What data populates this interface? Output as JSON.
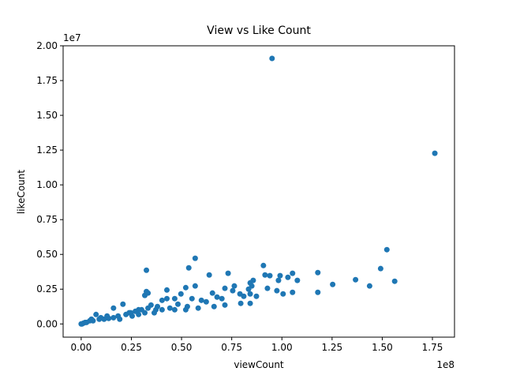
{
  "chart_data": {
    "type": "scatter",
    "title": "View vs Like Count",
    "x_label": "viewCount",
    "y_label": "likeCount",
    "x_offset_label": "1e8",
    "y_offset_label": "1e7",
    "color": "#1f77b4",
    "xlim": [
      -9000000,
      186000000
    ],
    "ylim": [
      -950000,
      20000000
    ],
    "xticks": [
      {
        "value": 0,
        "label": "0.00"
      },
      {
        "value": 25000000,
        "label": "0.25"
      },
      {
        "value": 50000000,
        "label": "0.50"
      },
      {
        "value": 75000000,
        "label": "0.75"
      },
      {
        "value": 100000000,
        "label": "1.00"
      },
      {
        "value": 125000000,
        "label": "1.25"
      },
      {
        "value": 150000000,
        "label": "1.50"
      },
      {
        "value": 175000000,
        "label": "1.75"
      }
    ],
    "yticks": [
      {
        "value": 0,
        "label": "0.00"
      },
      {
        "value": 2500000,
        "label": "0.25"
      },
      {
        "value": 5000000,
        "label": "0.50"
      },
      {
        "value": 7500000,
        "label": "0.75"
      },
      {
        "value": 10000000,
        "label": "1.00"
      },
      {
        "value": 12500000,
        "label": "1.25"
      },
      {
        "value": 15000000,
        "label": "1.50"
      },
      {
        "value": 17500000,
        "label": "1.75"
      },
      {
        "value": 20000000,
        "label": "2.00"
      }
    ],
    "x": [
      95100000,
      176200000,
      152300000,
      149200000,
      156200000,
      143700000,
      136700000,
      125300000,
      117900000,
      117900000,
      107700000,
      105300000,
      103000000,
      99100000,
      98300000,
      105300000,
      100600000,
      97500000,
      92800000,
      94000000,
      90800000,
      91600000,
      85000000,
      85700000,
      84200000,
      84200000,
      87300000,
      81000000,
      79100000,
      76300000,
      75500000,
      73200000,
      71600000,
      70100000,
      67700000,
      65400000,
      63800000,
      62300000,
      59900000,
      56800000,
      56800000,
      53600000,
      52100000,
      55200000,
      52900000,
      49700000,
      48200000,
      46600000,
      44200000,
      42700000,
      42700000,
      40300000,
      38000000,
      37200000,
      34800000,
      33300000,
      31700000,
      32500000,
      33300000,
      31700000,
      30100000,
      28600000,
      27000000,
      25400000,
      23900000,
      22300000,
      20800000,
      18400000,
      16100000,
      16100000,
      13700000,
      11400000,
      9000000,
      7400000,
      5900000,
      4300000,
      2700000,
      1200000,
      0,
      400000,
      2000000,
      5100000,
      9800000,
      12900000,
      19200000,
      24700000,
      28600000,
      36400000,
      40300000,
      46600000,
      52100000,
      58300000,
      66200000,
      71600000,
      79500000,
      84200000,
      32500000,
      83400000
    ],
    "y": [
      19090000,
      12270000,
      5340000,
      3980000,
      3070000,
      2730000,
      3180000,
      2840000,
      3690000,
      2270000,
      3130000,
      3640000,
      3350000,
      3470000,
      3130000,
      2270000,
      2160000,
      2390000,
      2560000,
      3470000,
      4200000,
      3520000,
      2730000,
      3130000,
      2950000,
      2160000,
      1990000,
      1990000,
      2160000,
      2730000,
      2390000,
      3640000,
      2560000,
      1820000,
      1930000,
      2220000,
      3520000,
      1590000,
      1700000,
      4720000,
      2730000,
      4030000,
      2610000,
      1820000,
      1250000,
      2160000,
      1420000,
      1820000,
      1140000,
      2440000,
      1820000,
      1700000,
      1250000,
      1020000,
      1360000,
      2220000,
      2050000,
      3860000,
      1140000,
      800000,
      1020000,
      680000,
      910000,
      570000,
      800000,
      680000,
      1420000,
      570000,
      450000,
      1140000,
      400000,
      340000,
      340000,
      680000,
      230000,
      230000,
      110000,
      60000,
      0,
      0,
      110000,
      340000,
      450000,
      570000,
      340000,
      800000,
      1020000,
      800000,
      1020000,
      1020000,
      1020000,
      1140000,
      1250000,
      1360000,
      1480000,
      1480000,
      2330000,
      2500000
    ]
  }
}
